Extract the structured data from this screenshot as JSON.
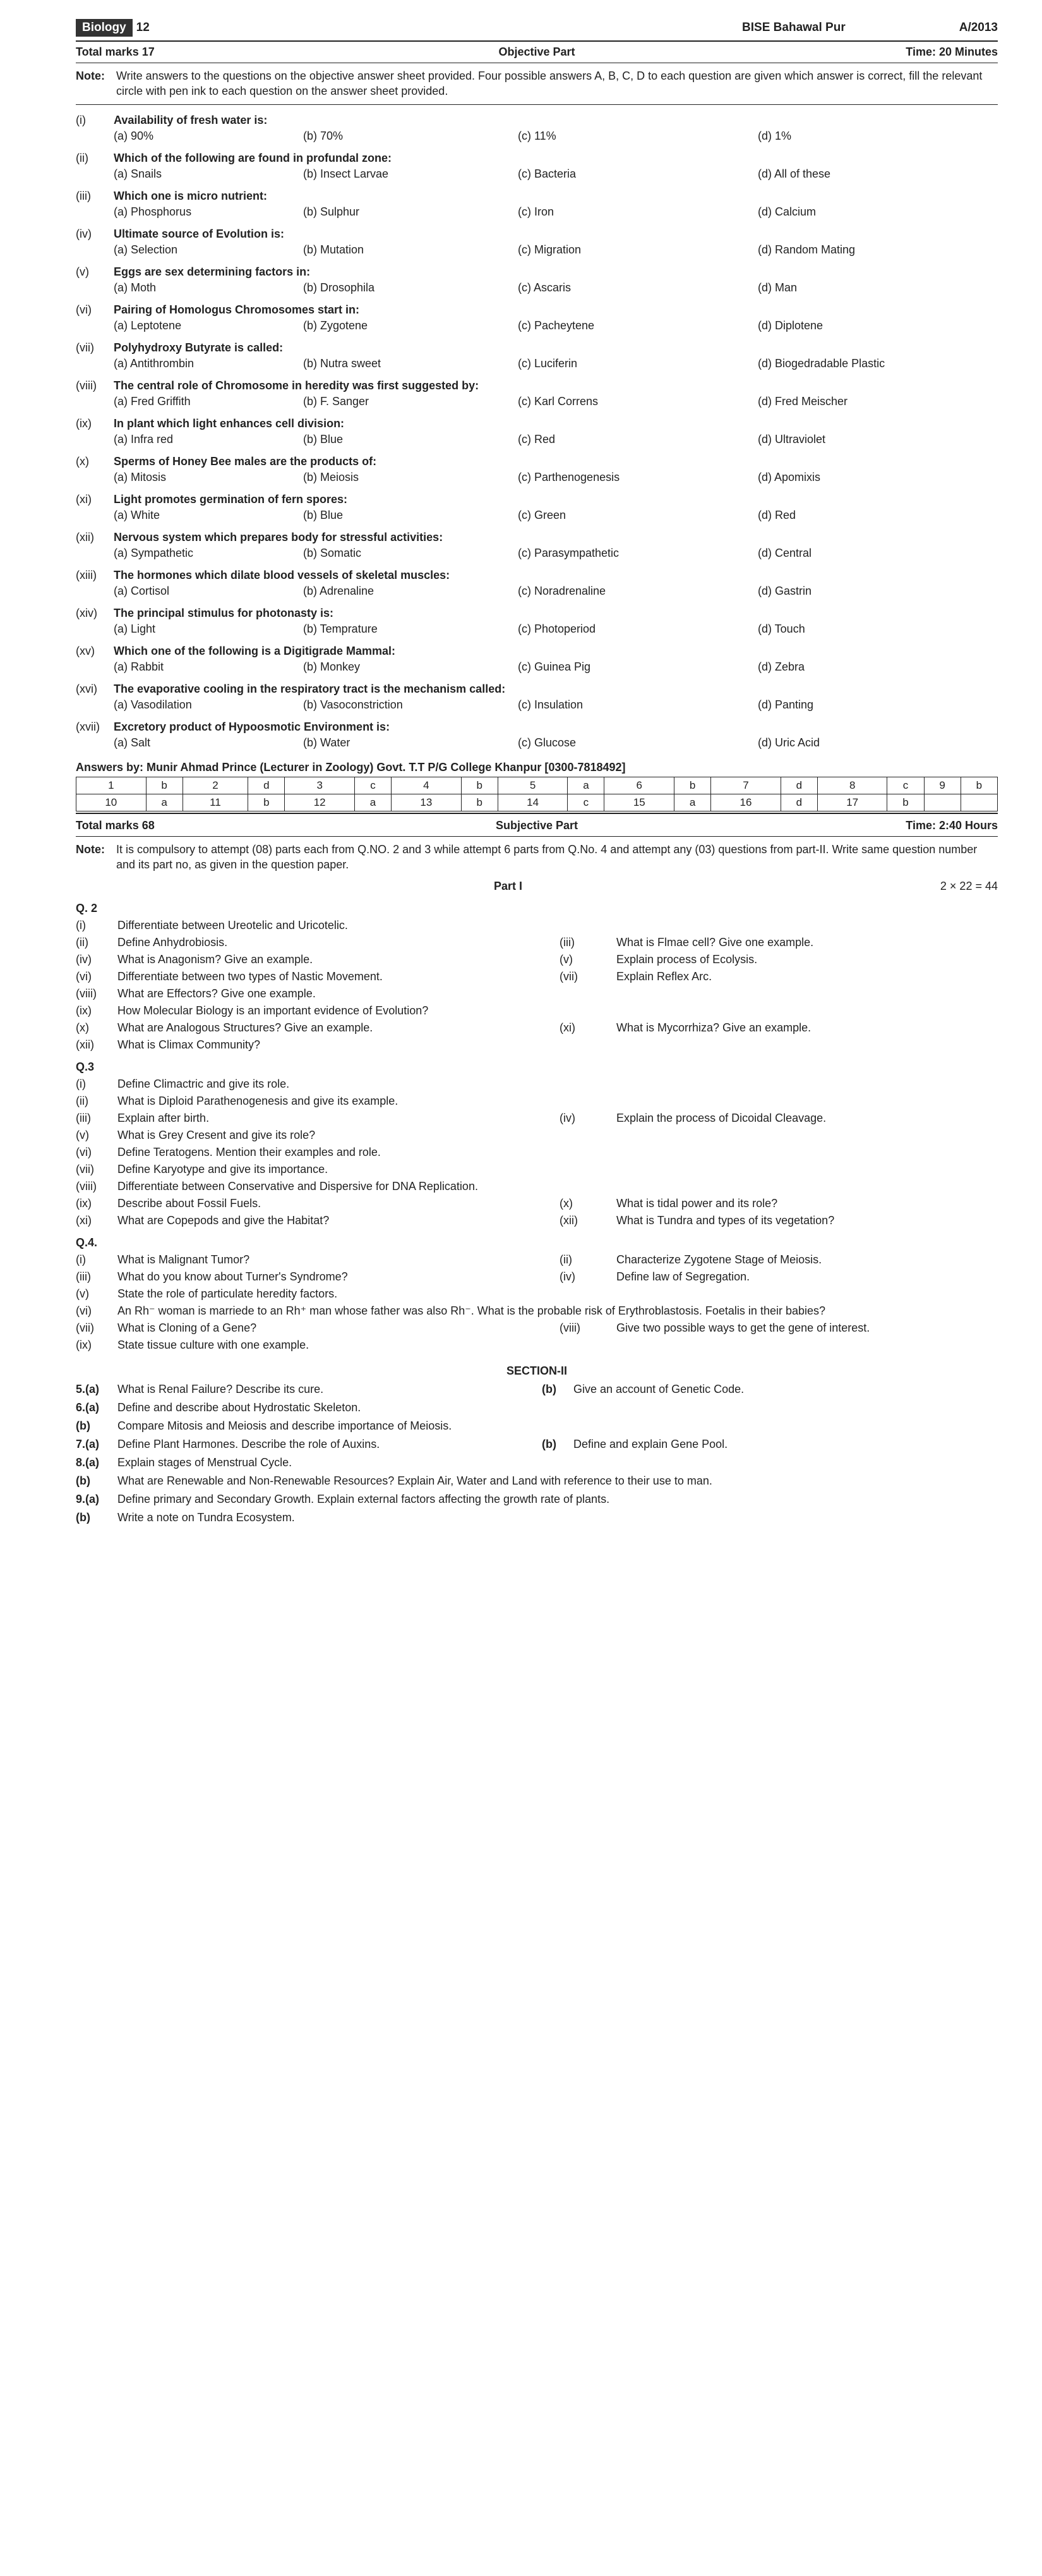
{
  "header": {
    "subject": "Biology",
    "grade": "12",
    "board": "BISE  Bahawal Pur",
    "session": "A/2013"
  },
  "objective": {
    "totalMarks": "Total marks 17",
    "part": "Objective Part",
    "time": "Time: 20 Minutes",
    "note": "Write answers to the questions on the objective answer sheet provided. Four possible answers A, B, C, D to each question are given which answer is correct, fill the relevant circle with pen ink to each question on the answer sheet provided.",
    "questions": [
      {
        "n": "(i)",
        "s": "Availability of fresh water is:",
        "a": "(a) 90%",
        "b": "(b) 70%",
        "c": "(c) 11%",
        "d": "(d) 1%"
      },
      {
        "n": "(ii)",
        "s": "Which of the following are found in profundal zone:",
        "a": "(a) Snails",
        "b": "(b) Insect Larvae",
        "c": "(c) Bacteria",
        "d": "(d) All of these"
      },
      {
        "n": "(iii)",
        "s": "Which one is micro nutrient:",
        "a": "(a) Phosphorus",
        "b": "(b) Sulphur",
        "c": "(c) Iron",
        "d": "(d) Calcium"
      },
      {
        "n": "(iv)",
        "s": "Ultimate source of Evolution is:",
        "a": "(a) Selection",
        "b": "(b) Mutation",
        "c": "(c) Migration",
        "d": "(d) Random Mating"
      },
      {
        "n": "(v)",
        "s": "Eggs are sex determining factors in:",
        "a": "(a) Moth",
        "b": "(b) Drosophila",
        "c": "(c) Ascaris",
        "d": "(d) Man"
      },
      {
        "n": "(vi)",
        "s": "Pairing of Homologus Chromosomes start in:",
        "a": "(a) Leptotene",
        "b": "(b) Zygotene",
        "c": "(c) Pacheytene",
        "d": "(d) Diplotene"
      },
      {
        "n": "(vii)",
        "s": "Polyhydroxy Butyrate is called:",
        "a": "(a) Antithrombin",
        "b": "(b) Nutra sweet",
        "c": "(c) Luciferin",
        "d": "(d) Biogedradable Plastic"
      },
      {
        "n": "(viii)",
        "s": "The central role of Chromosome in heredity was first suggested by:",
        "a": "(a) Fred Griffith",
        "b": "(b) F. Sanger",
        "c": "(c) Karl Correns",
        "d": "(d) Fred Meischer"
      },
      {
        "n": "(ix)",
        "s": "In plant which light enhances cell division:",
        "a": "(a) Infra red",
        "b": "(b) Blue",
        "c": "(c) Red",
        "d": "(d) Ultraviolet"
      },
      {
        "n": "(x)",
        "s": "Sperms of Honey Bee males are the products of:",
        "a": "(a) Mitosis",
        "b": "(b) Meiosis",
        "c": "(c) Parthenogenesis",
        "d": "(d) Apomixis"
      },
      {
        "n": "(xi)",
        "s": "Light promotes germination of fern spores:",
        "a": "(a) White",
        "b": "(b) Blue",
        "c": "(c) Green",
        "d": "(d) Red"
      },
      {
        "n": "(xii)",
        "s": "Nervous system which prepares body for stressful activities:",
        "a": "(a) Sympathetic",
        "b": "(b) Somatic",
        "c": "(c) Parasympathetic",
        "d": "(d) Central"
      },
      {
        "n": "(xiii)",
        "s": "The hormones which dilate blood vessels of skeletal muscles:",
        "a": "(a) Cortisol",
        "b": "(b) Adrenaline",
        "c": "(c) Noradrenaline",
        "d": "(d) Gastrin"
      },
      {
        "n": "(xiv)",
        "s": "The principal stimulus for photonasty is:",
        "a": "(a) Light",
        "b": "(b) Temprature",
        "c": "(c) Photoperiod",
        "d": "(d) Touch"
      },
      {
        "n": "(xv)",
        "s": "Which one of the following is a Digitigrade Mammal:",
        "a": "(a) Rabbit",
        "b": "(b) Monkey",
        "c": "(c) Guinea Pig",
        "d": "(d) Zebra"
      },
      {
        "n": "(xvi)",
        "s": "The evaporative cooling in the respiratory tract is the mechanism called:",
        "a": "(a) Vasodilation",
        "b": "(b) Vasoconstriction",
        "c": "(c) Insulation",
        "d": "(d) Panting"
      },
      {
        "n": "(xvii)",
        "s": "Excretory product of Hypoosmotic Environment is:",
        "a": "(a) Salt",
        "b": "(b) Water",
        "c": "(c) Glucose",
        "d": "(d) Uric Acid"
      }
    ],
    "answersBy": "Answers by: Munir Ahmad Prince (Lecturer in Zoology)  Govt. T.T P/G College Khanpur [0300-7818492]",
    "answerKey": [
      [
        "1",
        "b",
        "2",
        "d",
        "3",
        "c",
        "4",
        "b",
        "5",
        "a",
        "6",
        "b",
        "7",
        "d",
        "8",
        "c",
        "9",
        "b"
      ],
      [
        "10",
        "a",
        "11",
        "b",
        "12",
        "a",
        "13",
        "b",
        "14",
        "c",
        "15",
        "a",
        "16",
        "d",
        "17",
        "b",
        "",
        ""
      ]
    ]
  },
  "subjective": {
    "totalMarks": "Total marks 68",
    "part": "Subjective Part",
    "time": "Time: 2:40 Hours",
    "note": "It is compulsory to attempt (08) parts each from Q.NO. 2 and 3 while attempt 6 parts from Q.No. 4 and attempt any (03) questions from part-II. Write same question number and its part no, as given in the question paper.",
    "partI": "Part I",
    "marks": "2 × 22 = 44",
    "q2": {
      "h": "Q. 2",
      "items": [
        {
          "n": "(i)",
          "t": "Differentiate between Ureotelic and Uricotelic."
        },
        {
          "n": "(ii)",
          "t": "Define Anhydrobiosis.",
          "n2": "(iii)",
          "t2": "What is Flmae cell? Give one example."
        },
        {
          "n": "(iv)",
          "t": "What is Anagonism? Give an example.",
          "n2": "(v)",
          "t2": "Explain process of Ecolysis."
        },
        {
          "n": "(vi)",
          "t": "Differentiate between two types of Nastic Movement.",
          "n2": "(vii)",
          "t2": "Explain Reflex Arc."
        },
        {
          "n": "(viii)",
          "t": "What are Effectors? Give one example."
        },
        {
          "n": "(ix)",
          "t": "How Molecular Biology is an important evidence of Evolution?"
        },
        {
          "n": "(x)",
          "t": "What are Analogous Structures? Give an example.",
          "n2": "(xi)",
          "t2": "What is Mycorrhiza? Give an example."
        },
        {
          "n": "(xii)",
          "t": "What is Climax Community?"
        }
      ]
    },
    "q3": {
      "h": "Q.3",
      "items": [
        {
          "n": "(i)",
          "t": "Define Climactric and give its role."
        },
        {
          "n": "(ii)",
          "t": "What is Diploid Parathenogenesis and give its example."
        },
        {
          "n": "(iii)",
          "t": "Explain after birth.",
          "n2": "(iv)",
          "t2": "Explain the process of Dicoidal Cleavage."
        },
        {
          "n": "(v)",
          "t": "What is Grey Cresent and give its role?"
        },
        {
          "n": "(vi)",
          "t": "Define Teratogens. Mention their examples and role."
        },
        {
          "n": "(vii)",
          "t": "Define Karyotype and give its importance."
        },
        {
          "n": "(viii)",
          "t": "Differentiate between Conservative and Dispersive for DNA Replication."
        },
        {
          "n": "(ix)",
          "t": "Describe about Fossil Fuels.",
          "n2": "(x)",
          "t2": "What is tidal power and its role?"
        },
        {
          "n": "(xi)",
          "t": "What are Copepods and give the Habitat?",
          "n2": "(xii)",
          "t2": "What is Tundra and types of its vegetation?"
        }
      ]
    },
    "q4": {
      "h": "Q.4.",
      "items": [
        {
          "n": "(i)",
          "t": "What is Malignant Tumor?",
          "n2": "(ii)",
          "t2": "Characterize Zygotene Stage of Meiosis."
        },
        {
          "n": "(iii)",
          "t": "What do you know about Turner's Syndrome?",
          "n2": "(iv)",
          "t2": "Define law of Segregation."
        },
        {
          "n": "(v)",
          "t": "State the role of particulate heredity factors."
        },
        {
          "n": "(vi)",
          "t": "An Rh⁻ woman is marriede to an Rh⁺ man whose father was also Rh⁻. What is the probable risk of Erythroblastosis. Foetalis in their babies?"
        },
        {
          "n": "(vii)",
          "t": "What is Cloning of a Gene?",
          "n2": "(viii)",
          "t2": "Give two possible ways to get the gene of interest."
        },
        {
          "n": "(ix)",
          "t": "State tissue culture with one example."
        }
      ]
    },
    "section2": {
      "h": "SECTION-II",
      "items": [
        {
          "n": "5.(a)",
          "t": "What is Renal Failure? Describe its cure.",
          "bl": "(b)",
          "t2": "Give an account of Genetic Code."
        },
        {
          "n": "6.(a)",
          "t": "Define and describe about Hydrostatic Skeleton."
        },
        {
          "n": "   (b)",
          "t": "Compare Mitosis and Meiosis and describe importance of Meiosis."
        },
        {
          "n": "7.(a)",
          "t": "Define Plant Harmones. Describe the role of Auxins.",
          "bl": "(b)",
          "t2": "Define and explain Gene Pool."
        },
        {
          "n": "8.(a)",
          "t": "Explain stages of Menstrual Cycle."
        },
        {
          "n": "   (b)",
          "t": "What are Renewable and Non-Renewable Resources? Explain Air, Water and Land with reference to their use to man."
        },
        {
          "n": "9.(a)",
          "t": "Define primary and Secondary Growth. Explain external factors affecting the growth rate of plants."
        },
        {
          "n": "   (b)",
          "t": "Write a note on Tundra Ecosystem."
        }
      ]
    }
  }
}
